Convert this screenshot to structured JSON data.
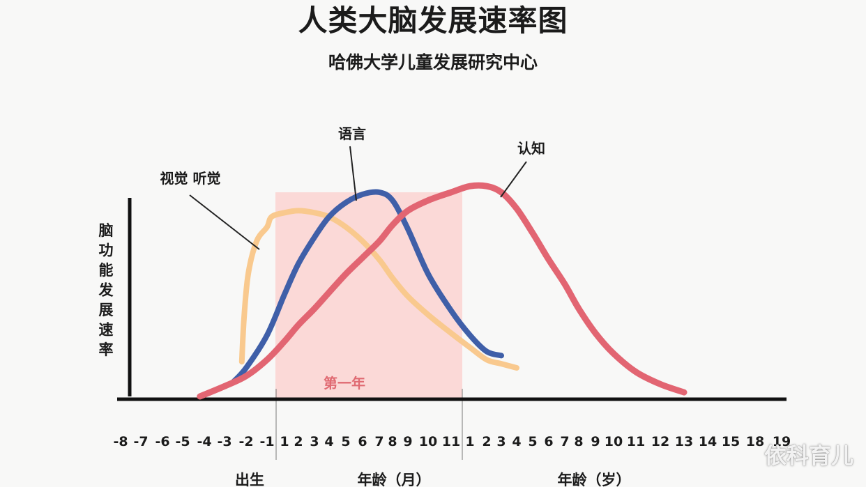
{
  "title": "人类大脑发展速率图",
  "subtitle": "哈佛大学儿童发展研究中心",
  "watermark": "依科育儿",
  "chart_data": {
    "type": "line",
    "ylabel": "脑功能发展速率",
    "x_sections": [
      {
        "label": "出生",
        "ticks": [
          "-8",
          "-7",
          "-6",
          "-5",
          "-4",
          "-3",
          "-2",
          "-1"
        ]
      },
      {
        "label": "年龄（月）",
        "ticks": [
          "1",
          "2",
          "3",
          "4",
          "5",
          "6",
          "7",
          "8",
          "9",
          "10",
          "11"
        ]
      },
      {
        "label": "年龄（岁）",
        "ticks": [
          "1",
          "2",
          "3",
          "4",
          "5",
          "6",
          "7",
          "8",
          "9",
          "10",
          "11",
          "12",
          "13",
          "14",
          "15",
          "18",
          "19"
        ]
      }
    ],
    "highlight": {
      "label": "第一年",
      "from": "1 (月)",
      "to": "11 (月)",
      "color": "#fbd9d7"
    },
    "series": [
      {
        "name": "视觉 听觉",
        "color": "#f9c98e",
        "x": [
          -2.2,
          -2.1,
          -1.9,
          -1.5,
          -1.0,
          -0.5,
          1,
          2,
          3,
          4,
          5,
          6,
          7,
          8,
          9,
          10,
          11,
          1,
          2,
          3,
          4
        ],
        "y": [
          0.17,
          0.38,
          0.6,
          0.76,
          0.83,
          0.88,
          0.9,
          0.91,
          0.9,
          0.88,
          0.83,
          0.76,
          0.67,
          0.58,
          0.49,
          0.4,
          0.31,
          0.24,
          0.18,
          0.16,
          0.14
        ]
      },
      {
        "name": "语言",
        "color": "#3f5fa8",
        "x": [
          -2.6,
          -2,
          -1,
          1,
          2,
          3,
          4,
          5,
          6,
          7,
          8,
          9,
          10,
          11,
          1,
          2,
          3
        ],
        "y": [
          0.07,
          0.14,
          0.3,
          0.5,
          0.65,
          0.78,
          0.88,
          0.95,
          0.99,
          1.0,
          0.96,
          0.82,
          0.6,
          0.42,
          0.3,
          0.22,
          0.2
        ]
      },
      {
        "name": "认知",
        "color": "#e26572",
        "x": [
          -4.2,
          -3,
          -2,
          -1,
          1,
          2,
          3,
          4,
          5,
          6,
          7,
          8,
          9,
          10,
          11,
          1,
          2,
          3,
          4,
          5,
          6,
          7,
          8,
          9,
          10,
          11,
          12,
          13
        ],
        "y": [
          0.0,
          0.05,
          0.1,
          0.18,
          0.27,
          0.35,
          0.43,
          0.51,
          0.6,
          0.68,
          0.76,
          0.84,
          0.91,
          0.96,
          1.0,
          1.03,
          1.03,
          1.0,
          0.92,
          0.8,
          0.67,
          0.55,
          0.43,
          0.31,
          0.21,
          0.12,
          0.06,
          0.02
        ]
      }
    ]
  }
}
